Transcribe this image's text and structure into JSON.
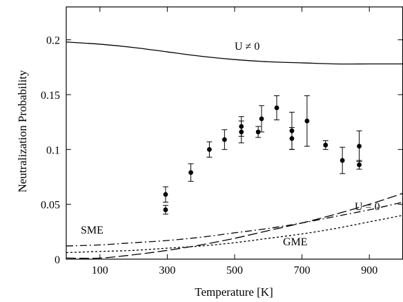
{
  "chart_data": {
    "type": "scatter",
    "title": "",
    "xlabel": "Temperature [K]",
    "ylabel": "Neutralization Probability",
    "xlim": [
      0,
      1000
    ],
    "ylim": [
      0,
      0.23
    ],
    "xticks": [
      100,
      300,
      500,
      700,
      900
    ],
    "xtick_labels": [
      "100",
      "300",
      "500",
      "700",
      "900"
    ],
    "yticks": [
      0,
      0.05,
      0.1,
      0.15,
      0.2
    ],
    "ytick_labels": [
      "0",
      "0.05",
      "0.1",
      "0.15",
      "0.2"
    ],
    "grid": false,
    "legend": "none",
    "points": [
      {
        "x": 295,
        "y": 0.059,
        "err": 0.007
      },
      {
        "x": 295,
        "y": 0.045,
        "err": 0.004
      },
      {
        "x": 370,
        "y": 0.079,
        "err": 0.008
      },
      {
        "x": 425,
        "y": 0.1,
        "err": 0.007
      },
      {
        "x": 470,
        "y": 0.109,
        "err": 0.009
      },
      {
        "x": 520,
        "y": 0.121,
        "err": 0.009
      },
      {
        "x": 520,
        "y": 0.116,
        "err": 0.01
      },
      {
        "x": 570,
        "y": 0.116,
        "err": 0.005
      },
      {
        "x": 580,
        "y": 0.128,
        "err": 0.012
      },
      {
        "x": 625,
        "y": 0.138,
        "err": 0.011
      },
      {
        "x": 670,
        "y": 0.117,
        "err": 0.017
      },
      {
        "x": 670,
        "y": 0.11,
        "err": 0.01
      },
      {
        "x": 715,
        "y": 0.126,
        "err": 0.023
      },
      {
        "x": 770,
        "y": 0.104,
        "err": 0.004
      },
      {
        "x": 820,
        "y": 0.09,
        "err": 0.012
      },
      {
        "x": 870,
        "y": 0.103,
        "err": 0.014
      },
      {
        "x": 870,
        "y": 0.086,
        "err": 0.004
      }
    ],
    "curves": [
      {
        "label": "U ≠ 0",
        "dash": "solid",
        "x": [
          0,
          100,
          200,
          300,
          400,
          500,
          600,
          700,
          800,
          900,
          1000
        ],
        "y": [
          0.198,
          0.196,
          0.193,
          0.189,
          0.185,
          0.182,
          0.18,
          0.179,
          0.178,
          0.178,
          0.178
        ]
      },
      {
        "label": "U = 0",
        "dash": "long-dash",
        "x": [
          0,
          100,
          200,
          300,
          400,
          500,
          600,
          700,
          800,
          900,
          1000
        ],
        "y": [
          0.001,
          0.001,
          0.004,
          0.008,
          0.013,
          0.019,
          0.026,
          0.033,
          0.041,
          0.05,
          0.06
        ]
      },
      {
        "label": "SME",
        "dash": "dash-dot",
        "x": [
          0,
          100,
          200,
          300,
          400,
          500,
          600,
          700,
          800,
          900,
          1000
        ],
        "y": [
          0.012,
          0.013,
          0.015,
          0.017,
          0.02,
          0.024,
          0.028,
          0.033,
          0.039,
          0.045,
          0.052
        ]
      },
      {
        "label": "GME",
        "dash": "dotted",
        "x": [
          0,
          100,
          200,
          300,
          400,
          500,
          600,
          700,
          800,
          900,
          1000
        ],
        "y": [
          0.006,
          0.007,
          0.008,
          0.01,
          0.012,
          0.015,
          0.019,
          0.023,
          0.028,
          0.034,
          0.04
        ]
      }
    ]
  }
}
